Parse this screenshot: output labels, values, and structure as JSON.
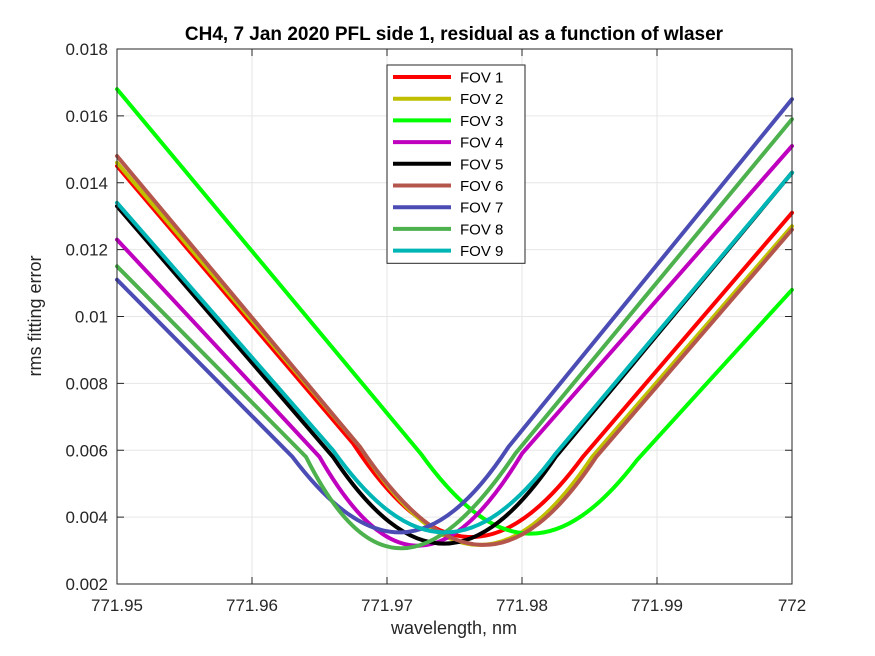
{
  "chart_data": {
    "type": "line",
    "title": "CH4, 7 Jan 2020 PFL side 1, residual as a function of wlaser",
    "xlabel": "wavelength, nm",
    "ylabel": "rms fitting error",
    "xlim": [
      771.95,
      772
    ],
    "ylim": [
      0.002,
      0.018
    ],
    "xticks": [
      "771.95",
      "771.96",
      "771.97",
      "771.98",
      "771.99",
      "772"
    ],
    "yticks": [
      "0.002",
      "0.004",
      "0.006",
      "0.008",
      "0.01",
      "0.012",
      "0.014",
      "0.016",
      "0.018"
    ],
    "grid": true,
    "legend_position": "top-center",
    "series": [
      {
        "name": "FOV 1",
        "color": "#ff0000",
        "x": [
          771.95,
          771.9675,
          771.976,
          771.9845,
          772
        ],
        "y": [
          0.0145,
          0.0062,
          0.0029,
          0.0058,
          0.0131
        ]
      },
      {
        "name": "FOV 2",
        "color": "#bfbf00",
        "x": [
          771.95,
          771.968,
          771.9768,
          771.9852,
          772
        ],
        "y": [
          0.0146,
          0.0061,
          0.0026,
          0.0058,
          0.0127
        ]
      },
      {
        "name": "FOV 3",
        "color": "#00ff00",
        "x": [
          771.95,
          771.9725,
          771.9805,
          771.9885,
          772
        ],
        "y": [
          0.0168,
          0.0059,
          0.0031,
          0.0057,
          0.0108
        ]
      },
      {
        "name": "FOV 4",
        "color": "#bf00bf",
        "x": [
          771.95,
          771.965,
          771.9722,
          771.98,
          772
        ],
        "y": [
          0.0123,
          0.0058,
          0.0026,
          0.0059,
          0.0151
        ]
      },
      {
        "name": "FOV 5",
        "color": "#000000",
        "x": [
          771.95,
          771.966,
          771.9742,
          771.9825,
          772
        ],
        "y": [
          0.0133,
          0.0058,
          0.0027,
          0.0058,
          0.0143
        ]
      },
      {
        "name": "FOV 6",
        "color": "#b5564c",
        "x": [
          771.95,
          771.968,
          771.9772,
          771.9855,
          772
        ],
        "y": [
          0.0148,
          0.0061,
          0.0026,
          0.0058,
          0.0126
        ]
      },
      {
        "name": "FOV 7",
        "color": "#4c4cb5",
        "x": [
          771.95,
          771.963,
          771.9712,
          771.979,
          772
        ],
        "y": [
          0.0111,
          0.0058,
          0.0031,
          0.0061,
          0.0165
        ]
      },
      {
        "name": "FOV 8",
        "color": "#4db14d",
        "x": [
          771.95,
          771.964,
          771.9705,
          771.9795,
          772
        ],
        "y": [
          0.0115,
          0.0058,
          0.0025,
          0.0059,
          0.0159
        ]
      },
      {
        "name": "FOV 9",
        "color": "#00b5b5",
        "x": [
          771.95,
          771.966,
          771.9742,
          771.9825,
          772
        ],
        "y": [
          0.0134,
          0.006,
          0.0031,
          0.0059,
          0.0143
        ]
      }
    ]
  }
}
